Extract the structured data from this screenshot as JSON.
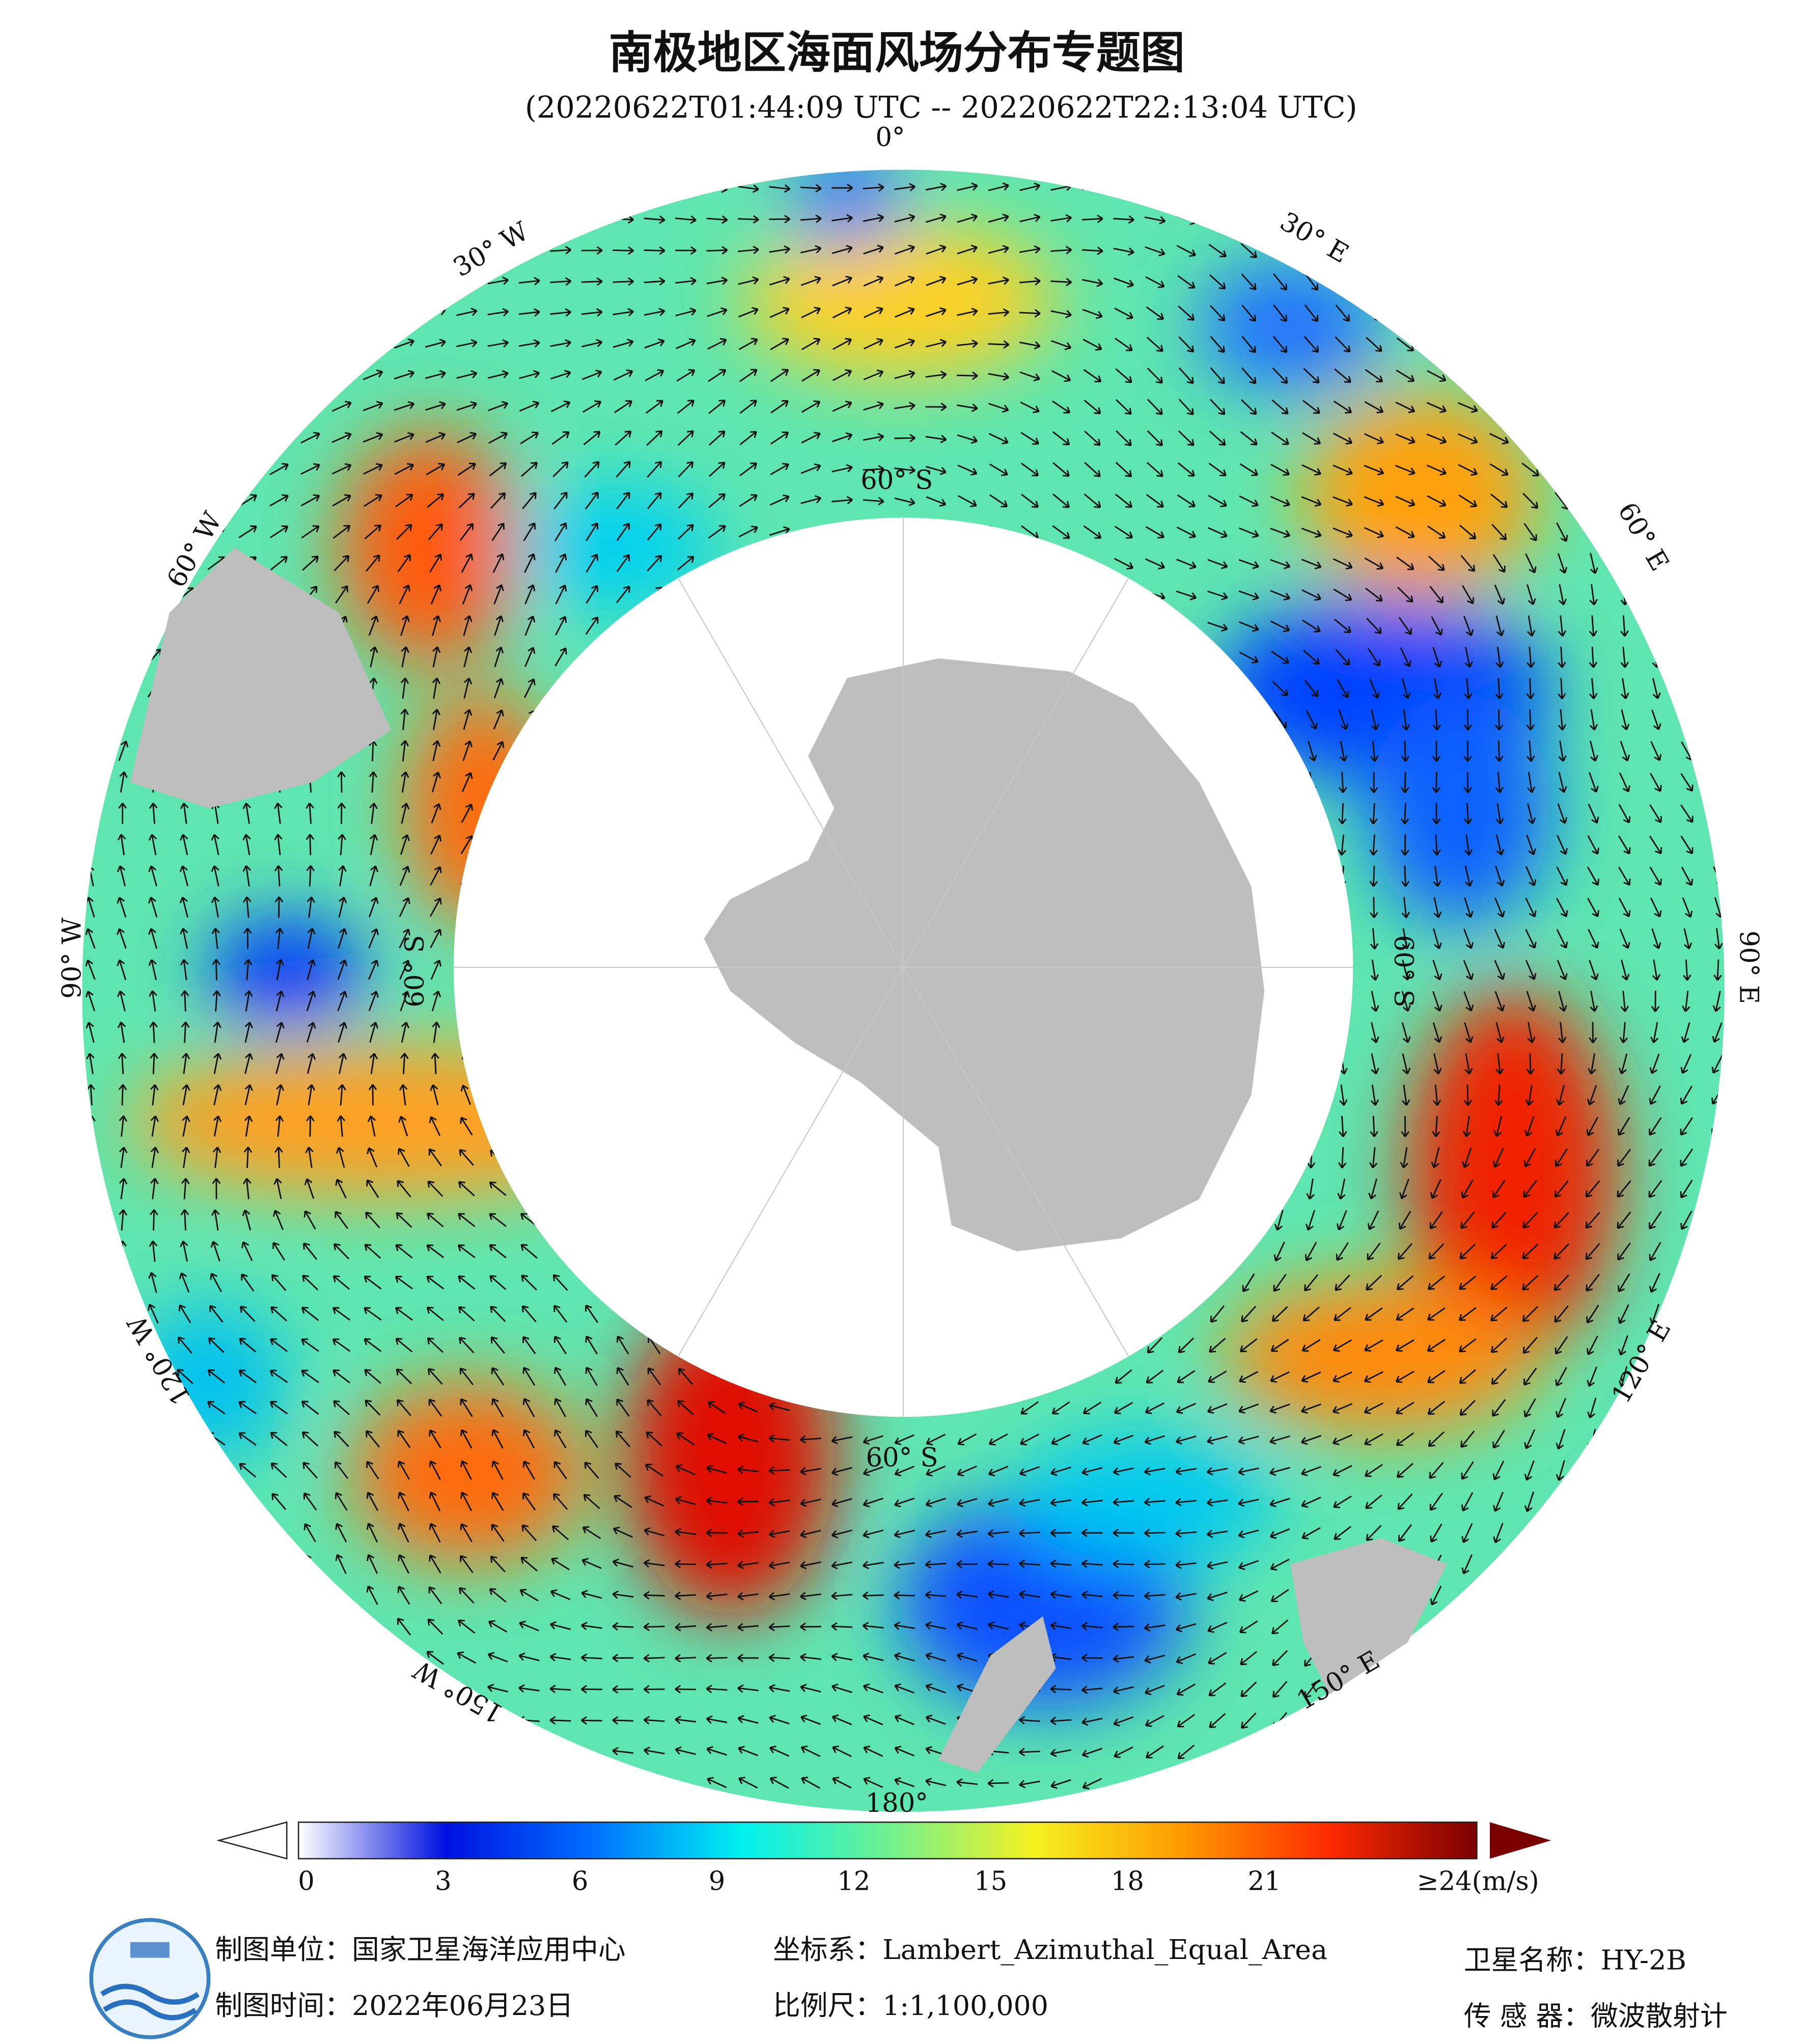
{
  "title": "南极地区海面风场分布专题图",
  "subtitle": "(20220622T01:44:09 UTC -- 20220622T22:13:04 UTC)",
  "graticule": {
    "longitudes": [
      "0°",
      "30° E",
      "60° E",
      "90° E",
      "120° E",
      "150° E",
      "180°",
      "150° W",
      "120° W",
      "90° W",
      "60° W",
      "30° W"
    ],
    "latitudes": [
      "60° S",
      "60° S",
      "60° S",
      "60° S"
    ]
  },
  "colorbar": {
    "labels": [
      "0",
      "3",
      "6",
      "9",
      "12",
      "15",
      "18",
      "21",
      "≥24(m/s)"
    ]
  },
  "footer": {
    "unit": "制图单位：国家卫星海洋应用中心",
    "date": "制图时间：2022年06月23日",
    "crs": "坐标系：Lambert_Azimuthal_Equal_Area",
    "scale": "比例尺：1:1,100,000",
    "satellite": "卫星名称：HY-2B",
    "sensor": "传 感 器：微波散射计"
  }
}
